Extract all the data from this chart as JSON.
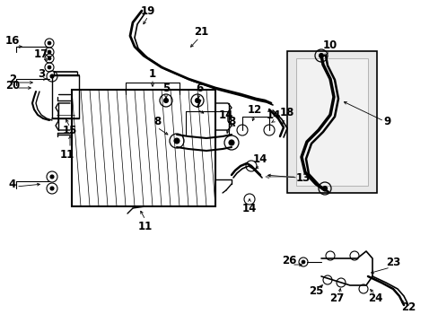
{
  "bg_color": "#ffffff",
  "fig_width": 4.89,
  "fig_height": 3.6,
  "dpi": 100,
  "line_color": "#000000",
  "gray_fill": "#d8d8d8",
  "light_gray": "#e8e8e8"
}
